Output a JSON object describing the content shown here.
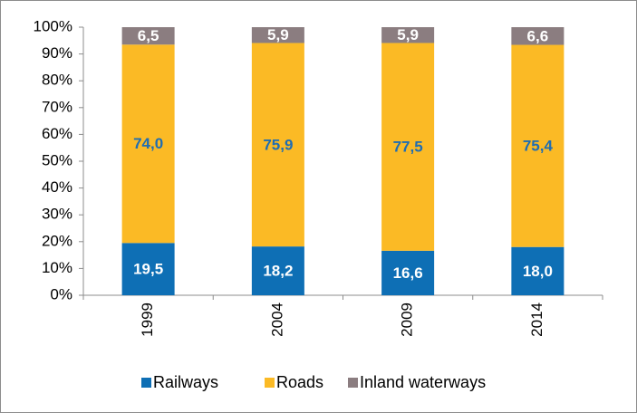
{
  "chart_data": {
    "type": "stacked-bar",
    "categories": [
      "1999",
      "2004",
      "2009",
      "2014"
    ],
    "series": [
      {
        "name": "Railways",
        "color": "#0e6fb5",
        "label_color": "#ffffff",
        "values": [
          19.5,
          18.2,
          16.6,
          18.0
        ],
        "value_labels": [
          "19,5",
          "18,2",
          "16,6",
          "18,0"
        ]
      },
      {
        "name": "Roads",
        "color": "#fbba25",
        "label_color": "#1f6db3",
        "values": [
          74.0,
          75.9,
          77.5,
          75.4
        ],
        "value_labels": [
          "74,0",
          "75,9",
          "77,5",
          "75,4"
        ]
      },
      {
        "name": "Inland waterways",
        "color": "#8b7d80",
        "label_color": "#ffffff",
        "values": [
          6.5,
          5.9,
          5.9,
          6.6
        ],
        "value_labels": [
          "6,5",
          "5,9",
          "5,9",
          "6,6"
        ]
      }
    ],
    "ylim": [
      0,
      100
    ],
    "yticks": [
      {
        "value": 0,
        "label": "0%"
      },
      {
        "value": 10,
        "label": "10%"
      },
      {
        "value": 20,
        "label": "20%"
      },
      {
        "value": 30,
        "label": "30%"
      },
      {
        "value": 40,
        "label": "40%"
      },
      {
        "value": 50,
        "label": "50%"
      },
      {
        "value": 60,
        "label": "60%"
      },
      {
        "value": 70,
        "label": "70%"
      },
      {
        "value": 80,
        "label": "80%"
      },
      {
        "value": 90,
        "label": "90%"
      },
      {
        "value": 100,
        "label": "100%"
      }
    ],
    "grid": false
  }
}
